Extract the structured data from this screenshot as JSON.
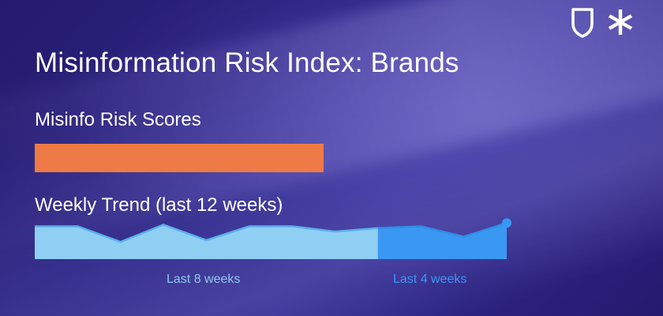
{
  "title": "Misinformation Risk Index: Brands",
  "scores_section": {
    "label": "Misinfo Risk Scores",
    "bar_fraction": 0.61,
    "bar_color": "#ee7a45"
  },
  "trend_section": {
    "label": "Weekly Trend (last 12 weeks)",
    "period_8_label": "Last 8 weeks",
    "period_4_label": "Last 4 weeks",
    "period_8_color": "#8fcff3",
    "period_4_color": "#3a98f2"
  },
  "brand": {
    "icons": [
      "shield-outline-icon",
      "asterisk-icon"
    ]
  },
  "chart_data": {
    "type": "area",
    "x": [
      1,
      2,
      3,
      4,
      5,
      6,
      7,
      8,
      9,
      10,
      11,
      12
    ],
    "values": [
      0.95,
      0.95,
      0.5,
      1.0,
      0.55,
      0.95,
      0.95,
      0.8,
      0.9,
      0.95,
      0.65,
      1.05
    ],
    "split_at_index": 8,
    "ylim": [
      0,
      1.1
    ],
    "grid": false,
    "legend": "none"
  }
}
